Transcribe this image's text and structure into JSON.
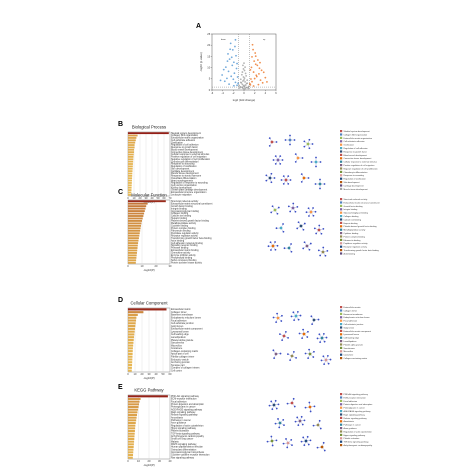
{
  "chart_data": [
    {
      "panel": "A",
      "type": "scatter",
      "title": "",
      "xlabel": "log2 (fold change)",
      "ylabel": "-log10 (p value)",
      "xlim": [
        -6,
        6
      ],
      "ylim": [
        0,
        25
      ],
      "xticks": [
        -6,
        -4,
        -2,
        0,
        2,
        4,
        6
      ],
      "yticks": [
        0,
        5,
        10,
        15,
        20,
        25
      ],
      "threshold_x": [
        -1,
        1
      ],
      "threshold_y": 1.3,
      "annotations": [
        "down",
        "up"
      ],
      "colors": {
        "down": "#5b9bd5",
        "up": "#ed7d31",
        "ns": "#a6a6a6"
      },
      "series": [
        {
          "group": "down",
          "points": [
            [
              -1.3,
              2.1
            ],
            [
              -1.6,
              3.4
            ],
            [
              -2.0,
              4.8
            ],
            [
              -2.4,
              6.1
            ],
            [
              -1.8,
              7.5
            ],
            [
              -2.9,
              8.3
            ],
            [
              -3.2,
              5.2
            ],
            [
              -1.4,
              9.6
            ],
            [
              -2.2,
              11.0
            ],
            [
              -3.6,
              3.9
            ],
            [
              -1.9,
              12.4
            ],
            [
              -2.7,
              13.8
            ],
            [
              -1.5,
              15.3
            ],
            [
              -3.0,
              16.1
            ],
            [
              -2.1,
              17.9
            ],
            [
              -1.7,
              19.4
            ],
            [
              -2.5,
              20.8
            ],
            [
              -4.1,
              6.7
            ],
            [
              -3.4,
              10.2
            ],
            [
              -1.2,
              5.8
            ],
            [
              -1.1,
              3.0
            ],
            [
              -2.8,
              2.6
            ],
            [
              -3.8,
              9.1
            ],
            [
              -1.6,
              22.4
            ],
            [
              -2.3,
              14.6
            ],
            [
              -1.9,
              1.9
            ],
            [
              -4.4,
              4.3
            ],
            [
              -2.6,
              18.2
            ],
            [
              -1.3,
              11.8
            ],
            [
              -3.1,
              12.9
            ]
          ]
        },
        {
          "group": "up",
          "points": [
            [
              1.2,
              2.3
            ],
            [
              1.5,
              3.7
            ],
            [
              2.0,
              5.1
            ],
            [
              2.3,
              6.6
            ],
            [
              1.8,
              8.0
            ],
            [
              2.8,
              7.2
            ],
            [
              3.1,
              4.4
            ],
            [
              1.4,
              10.1
            ],
            [
              2.2,
              11.5
            ],
            [
              3.5,
              3.2
            ],
            [
              1.9,
              12.9
            ],
            [
              2.6,
              13.4
            ],
            [
              1.5,
              14.8
            ],
            [
              2.9,
              9.7
            ],
            [
              2.1,
              16.5
            ],
            [
              1.7,
              18.0
            ],
            [
              2.4,
              6.0
            ],
            [
              4.0,
              5.5
            ],
            [
              3.3,
              8.8
            ],
            [
              1.3,
              4.9
            ],
            [
              1.1,
              2.8
            ],
            [
              2.7,
              2.4
            ],
            [
              3.7,
              7.9
            ],
            [
              1.6,
              20.2
            ],
            [
              2.2,
              15.1
            ],
            [
              1.8,
              1.8
            ],
            [
              4.3,
              3.6
            ],
            [
              2.5,
              11.0
            ],
            [
              1.2,
              9.0
            ],
            [
              3.0,
              12.2
            ]
          ]
        },
        {
          "group": "ns",
          "points": [
            [
              0.0,
              0.3
            ],
            [
              0.2,
              0.6
            ],
            [
              -0.2,
              0.8
            ],
            [
              0.4,
              1.0
            ],
            [
              -0.4,
              1.2
            ],
            [
              0.1,
              1.5
            ],
            [
              -0.1,
              1.8
            ],
            [
              0.3,
              2.2
            ],
            [
              -0.3,
              2.5
            ],
            [
              0.5,
              2.9
            ],
            [
              -0.5,
              3.2
            ],
            [
              0.2,
              3.6
            ],
            [
              -0.2,
              4.0
            ],
            [
              0.6,
              4.4
            ],
            [
              -0.6,
              4.8
            ],
            [
              0.1,
              5.3
            ],
            [
              -0.1,
              5.8
            ],
            [
              0.4,
              6.3
            ],
            [
              -0.4,
              6.8
            ],
            [
              0.3,
              7.4
            ],
            [
              -0.3,
              8.0
            ],
            [
              0.1,
              8.7
            ],
            [
              -0.1,
              9.4
            ],
            [
              0.2,
              10.2
            ],
            [
              -0.2,
              11.0
            ],
            [
              0.0,
              12.0
            ],
            [
              0.7,
              1.1
            ],
            [
              -0.7,
              1.4
            ],
            [
              0.8,
              0.7
            ],
            [
              -0.8,
              0.9
            ],
            [
              0.9,
              1.6
            ],
            [
              -0.9,
              2.0
            ],
            [
              0.6,
              3.0
            ],
            [
              -0.6,
              3.4
            ],
            [
              0.0,
              2.0
            ],
            [
              0.0,
              4.5
            ]
          ]
        }
      ]
    },
    {
      "panel": "B",
      "type": "bar",
      "orientation": "horizontal",
      "title": "Biological Process",
      "xlabel": "-log10(P)",
      "xlim": [
        0,
        70
      ],
      "xticks": [
        0,
        10,
        20,
        30,
        40,
        50,
        60,
        70
      ],
      "categories": [
        "Skeletal system development",
        "Collagen fibril organization",
        "Extracellular matrix organization",
        "Cell-substrate adhesion",
        "Ossification",
        "Regulation of cell adhesion",
        "Response to growth factor",
        "Blood vessel development",
        "Connective tissue development",
        "Cellular response to external stimulus",
        "Positive regulation of cell migration",
        "Negative regulation of cell proliferation",
        "Chondrocyte differentiation",
        "Response to wounding",
        "Regulation of ossification",
        "Skin development",
        "Cartilage development",
        "Muscle tissue development",
        "Response to steroid hormone",
        "Osteoblast differentiation",
        "Heart morphogenesis",
        "Regulation of response to wounding",
        "Cell junction organization",
        "Kidney development",
        "Growth plate cartilage development",
        "Extracellular structure organization",
        "Leukocyte migration"
      ],
      "values": [
        68,
        16,
        14,
        13,
        12,
        11,
        11,
        10,
        10,
        9.5,
        9,
        8.8,
        8.5,
        8.2,
        8,
        7.8,
        7.5,
        7.2,
        7,
        6.8,
        6.6,
        6.4,
        6.2,
        6,
        5.8,
        5.6,
        5.4
      ]
    },
    {
      "panel": "C",
      "type": "bar",
      "orientation": "horizontal",
      "title": "Molecular Function",
      "xlabel": "-log10(P)",
      "xlim": [
        0,
        30
      ],
      "xticks": [
        0,
        10,
        20,
        30
      ],
      "categories": [
        "Structural molecule activity",
        "Extracellular matrix structural constituent",
        "Growth factor binding",
        "Integrin binding",
        "Glycosaminoglycan binding",
        "Collagen binding",
        "Calcium ion binding",
        "Heparin binding",
        "Platelet-derived growth factor binding",
        "Metallopeptidase activity",
        "Cytokine binding",
        "Protein complex binding",
        "Fibronectin binding",
        "Peptidase regulator activity",
        "Receptor regulator activity",
        "Transforming growth factor beta binding",
        "Actin binding",
        "Cell adhesion molecule binding",
        "Signaling receptor binding",
        "Protease binding",
        "Extracellular matrix binding",
        "Chemokine activity",
        "Enzyme inhibitor activity",
        "Phospholipid binding",
        "Sulfur compound binding",
        "Protein tyrosine kinase activity"
      ],
      "values": [
        27,
        14,
        13,
        12.5,
        12,
        11.5,
        11,
        10.5,
        10,
        9.6,
        9.3,
        9,
        8.7,
        8.4,
        8.1,
        7.8,
        7.5,
        7.2,
        7,
        6.8,
        6.6,
        6.4,
        6.2,
        6,
        5.8,
        5.6
      ]
    },
    {
      "panel": "D",
      "type": "bar",
      "orientation": "horizontal",
      "title": "Cellular Component",
      "xlabel": "-log10(P)",
      "xlim": [
        0,
        60
      ],
      "xticks": [
        0,
        10,
        20,
        30,
        40,
        50,
        60
      ],
      "categories": [
        "Extracellular matrix",
        "Collagen trimer",
        "Basement membrane",
        "Endoplasmic reticulum lumen",
        "Focal adhesion",
        "Cell-substrate junction",
        "Golgi lumen",
        "Extracellular matrix component",
        "Lysosomal lumen",
        "Cell leading edge",
        "Lamellipodium",
        "Platelet alpha granule",
        "Sarcolemma",
        "Microvillus",
        "Costamere",
        "Collagen-containing matrix",
        "Apical part of cell",
        "Fibrillar collagen trimer",
        "Endocytic vesicle",
        "Anchoring junction",
        "Synapse part",
        "Complex of collagen trimers",
        "Cell cortex"
      ],
      "values": [
        55,
        22,
        14,
        12,
        11.5,
        11,
        10.5,
        10,
        9.5,
        9,
        8.6,
        8.2,
        7.8,
        7.4,
        7,
        6.8,
        6.6,
        6.4,
        6.2,
        6,
        5.8,
        5.6,
        5.4
      ]
    },
    {
      "panel": "E",
      "type": "bar",
      "orientation": "horizontal",
      "title": "KEGG Pathway",
      "xlabel": "-log10(P)",
      "xlim": [
        0,
        40
      ],
      "xticks": [
        0,
        10,
        20,
        30,
        40
      ],
      "categories": [
        "PI3K-Akt signaling pathway",
        "ECM-receptor interaction",
        "Focal adhesion",
        "Protein digestion and absorption",
        "Proteoglycans in cancer",
        "AGE-RAGE signaling pathway",
        "Rap1 signaling pathway",
        "Relaxin signaling pathway",
        "Amoebiasis",
        "Pathways in cancer",
        "Axon guidance",
        "Regulation of actin cytoskeleton",
        "Hippo signaling pathway",
        "Platelet activation",
        "TGF-beta signaling pathway",
        "Arrhythmogenic cardiomyopathy",
        "Small cell lung cancer",
        "Malaria",
        "MAPK signaling pathway",
        "Human papillomavirus infection",
        "Osteoclast differentiation",
        "Glycosaminoglycan biosynthesis",
        "Cytokine-cytokine receptor interaction",
        "Ras signaling pathway"
      ],
      "values": [
        38,
        12,
        11,
        10.5,
        10,
        9.5,
        9,
        8.6,
        8.2,
        7.8,
        7.4,
        7,
        6.8,
        6.6,
        6.4,
        6.2,
        6,
        5.8,
        5.6,
        5.4,
        5.2,
        5,
        4.8,
        4.6
      ]
    }
  ],
  "panel_labels": [
    "A",
    "B",
    "C",
    "D",
    "E"
  ],
  "networks": {
    "node_color": "#3b4fc4",
    "edge_color": "#8f9bd6",
    "legend_colors": [
      "#c0504d",
      "#4f81bd",
      "#9bbb59",
      "#8064a2",
      "#f79646",
      "#4bacc6",
      "#2c4d75",
      "#c0504d",
      "#e46c0a",
      "#31859c",
      "#7f6084",
      "#948a54",
      "#77933c",
      "#d99694",
      "#1f497d",
      "#b65708",
      "#604a7b",
      "#a5a5a5"
    ]
  },
  "legends": {
    "B": [
      "Skeletal system development",
      "Collagen fibril organization",
      "Extracellular matrix organization",
      "Cell-substrate adhesion",
      "Ossification",
      "Regulation of cell adhesion",
      "Response to growth factor",
      "Blood vessel development",
      "Connective tissue development",
      "Cellular response to external stimulus",
      "Positive regulation of cell migration",
      "Negative regulation of cell proliferation",
      "Chondrocyte differentiation",
      "Response to wounding",
      "Regulation of ossification",
      "Skin development",
      "Cartilage development",
      "Muscle tissue development"
    ],
    "C": [
      "Structural molecule activity",
      "Extracellular matrix structural constituent",
      "Growth factor binding",
      "Integrin binding",
      "Glycosaminoglycan binding",
      "Collagen binding",
      "Calcium ion binding",
      "Heparin binding",
      "Platelet-derived growth factor binding",
      "Metallopeptidase activity",
      "Cytokine binding",
      "Protein complex binding",
      "Fibronectin binding",
      "Peptidase regulator activity",
      "Receptor regulator activity",
      "Transforming growth factor beta binding",
      "Actin binding"
    ],
    "D": [
      "Extracellular matrix",
      "Collagen trimer",
      "Basement membrane",
      "Endoplasmic reticulum lumen",
      "Focal adhesion",
      "Cell-substrate junction",
      "Golgi lumen",
      "Extracellular matrix component",
      "Lysosomal lumen",
      "Cell leading edge",
      "Lamellipodium",
      "Platelet alpha granule",
      "Sarcolemma",
      "Microvillus",
      "Costamere",
      "Collagen-containing matrix"
    ],
    "E": [
      "PI3K-Akt signaling pathway",
      "ECM-receptor interaction",
      "Focal adhesion",
      "Protein digestion and absorption",
      "Proteoglycans in cancer",
      "AGE-RAGE signaling pathway",
      "Rap1 signaling pathway",
      "Relaxin signaling pathway",
      "Amoebiasis",
      "Pathways in cancer",
      "Axon guidance",
      "Regulation of actin cytoskeleton",
      "Hippo signaling pathway",
      "Platelet activation",
      "TGF-beta signaling pathway",
      "Arrhythmogenic cardiomyopathy"
    ]
  }
}
